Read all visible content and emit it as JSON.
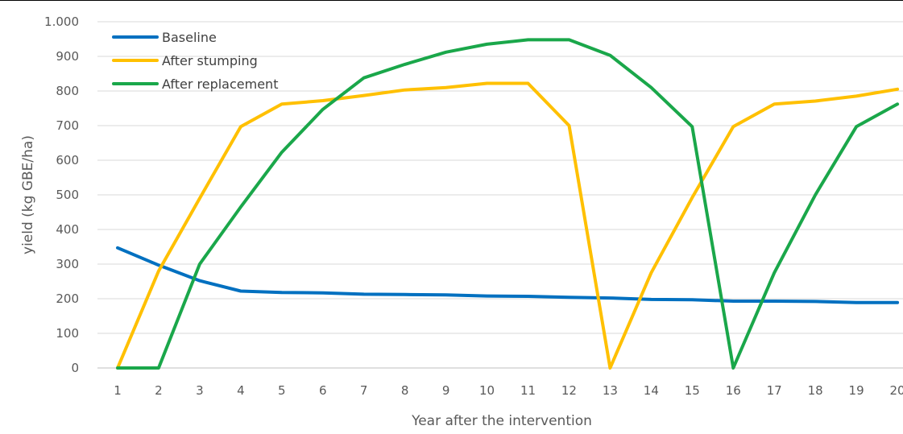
{
  "chart_data": {
    "type": "line",
    "title": "",
    "xlabel": "Year after the  intervention",
    "ylabel": "yield (kg GBE/ha)",
    "x": [
      1,
      2,
      3,
      4,
      5,
      6,
      7,
      8,
      9,
      10,
      11,
      12,
      13,
      14,
      15,
      16,
      17,
      18,
      19,
      20
    ],
    "x_tick_labels": [
      "1",
      "2",
      "3",
      "4",
      "5",
      "6",
      "7",
      "8",
      "9",
      "10",
      "11",
      "12",
      "13",
      "14",
      "15",
      "16",
      "17",
      "18",
      "19",
      "20"
    ],
    "ylim": [
      0,
      1000
    ],
    "y_ticks": [
      0,
      100,
      200,
      300,
      400,
      500,
      600,
      700,
      800,
      900,
      1000
    ],
    "y_tick_labels": [
      "0",
      "100",
      "200",
      "300",
      "400",
      "500",
      "600",
      "700",
      "800",
      "900",
      "1.000"
    ],
    "grid": "horizontal",
    "legend_position": "top-left",
    "series": [
      {
        "name": "Baseline",
        "color": "#0070C0",
        "values": [
          347,
          297,
          252,
          222,
          218,
          217,
          213,
          212,
          211,
          208,
          207,
          204,
          202,
          198,
          197,
          193,
          193,
          192,
          189,
          189
        ]
      },
      {
        "name": "After stumping",
        "color": "#FFC000",
        "values": [
          0,
          280,
          490,
          697,
          762,
          772,
          787,
          803,
          810,
          822,
          822,
          700,
          0,
          275,
          492,
          697,
          762,
          771,
          785,
          805
        ]
      },
      {
        "name": "After replacement",
        "color": "#1AA74A",
        "values": [
          0,
          0,
          300,
          465,
          623,
          747,
          838,
          877,
          912,
          935,
          948,
          948,
          903,
          810,
          697,
          0,
          275,
          500,
          697,
          762
        ]
      }
    ]
  }
}
